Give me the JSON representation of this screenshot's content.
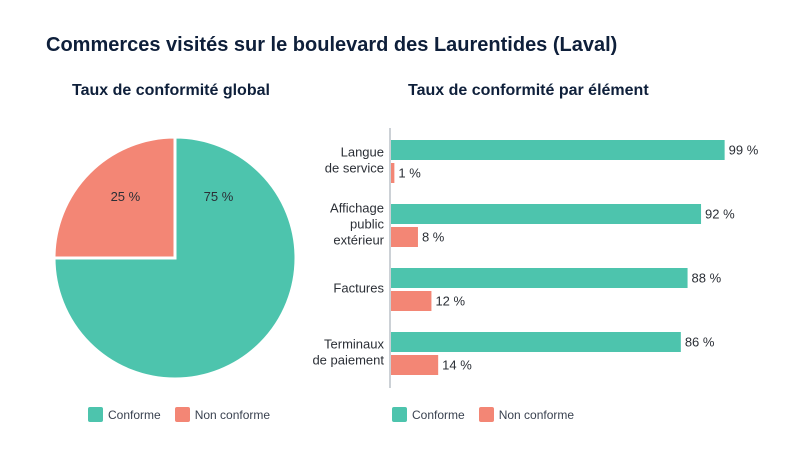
{
  "title": "Commerces visités sur le boulevard des Laurentides (Laval)",
  "colors": {
    "conforme": "#4dc4ad",
    "non_conforme": "#f38675"
  },
  "chart_data": [
    {
      "type": "pie",
      "title": "Taux de conformité global",
      "slices": [
        {
          "name": "Conforme",
          "value": 75,
          "label": "75 %"
        },
        {
          "name": "Non conforme",
          "value": 25,
          "label": "25 %"
        }
      ],
      "legend": [
        "Conforme",
        "Non conforme"
      ],
      "legend_position": "bottom"
    },
    {
      "type": "bar",
      "orientation": "horizontal",
      "title": "Taux de conformité par élément",
      "categories": [
        [
          "Langue",
          "de service"
        ],
        [
          "Affichage",
          "public",
          "extérieur"
        ],
        [
          "Factures"
        ],
        [
          "Terminaux",
          "de paiement"
        ]
      ],
      "series": [
        {
          "name": "Conforme",
          "values": [
            99,
            92,
            88,
            86
          ],
          "labels": [
            "99 %",
            "92 %",
            "88 %",
            "86 %"
          ]
        },
        {
          "name": "Non conforme",
          "values": [
            1,
            8,
            12,
            14
          ],
          "labels": [
            "1 %",
            "8 %",
            "12 %",
            "14 %"
          ]
        }
      ],
      "xlim": [
        0,
        100
      ],
      "legend": [
        "Conforme",
        "Non conforme"
      ],
      "legend_position": "bottom"
    }
  ]
}
